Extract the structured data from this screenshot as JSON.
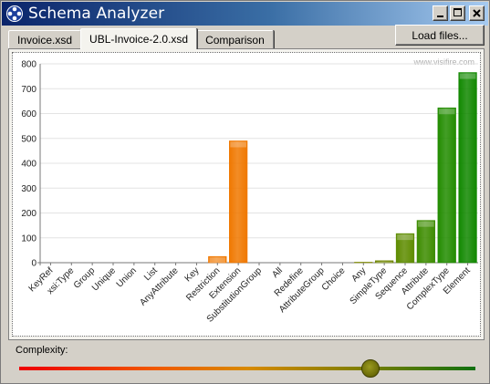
{
  "window": {
    "title": "Schema Analyzer",
    "icon": "schema-analyzer-app-icon"
  },
  "tabs": [
    {
      "label": "Invoice.xsd",
      "active": false
    },
    {
      "label": "UBL-Invoice-2.0.xsd",
      "active": true
    },
    {
      "label": "Comparison",
      "active": false
    }
  ],
  "toolbar": {
    "load_label": "Load files..."
  },
  "watermark": "www.visifire.com",
  "complexity": {
    "label": "Complexity:",
    "value": 0.77
  },
  "chart_data": {
    "type": "bar",
    "title": "",
    "xlabel": "",
    "ylabel": "",
    "ylim": [
      0,
      800
    ],
    "yticks": [
      0,
      100,
      200,
      300,
      400,
      500,
      600,
      700,
      800
    ],
    "grid": true,
    "categories": [
      "KeyRef",
      "xsi:Type",
      "Group",
      "Unique",
      "Union",
      "List",
      "AnyAttribute",
      "Key",
      "Restriction",
      "Extension",
      "SubstitutionGroup",
      "All",
      "Redefine",
      "AttributeGroup",
      "Choice",
      "Any",
      "SimpleType",
      "Sequence",
      "Attribute",
      "ComplexType",
      "Element"
    ],
    "values": [
      0,
      0,
      0,
      0,
      0,
      0,
      0,
      0,
      25,
      490,
      0,
      0,
      0,
      0,
      0,
      2,
      8,
      117,
      170,
      623,
      765
    ],
    "colors": [
      "#f07800",
      "#f07800",
      "#f07800",
      "#f07800",
      "#f07800",
      "#f07800",
      "#f07800",
      "#f07800",
      "#f07800",
      "#f07800",
      "#a0a000",
      "#a0a000",
      "#a0a000",
      "#a0a000",
      "#a0a000",
      "#7f8a00",
      "#6f8500",
      "#5e8c00",
      "#3d8c00",
      "#228c00",
      "#118800"
    ]
  }
}
